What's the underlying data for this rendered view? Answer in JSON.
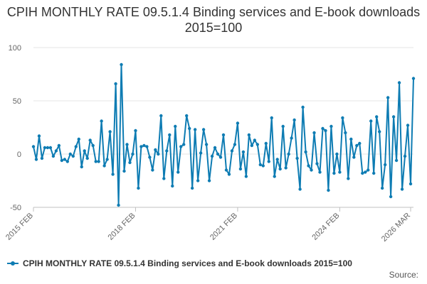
{
  "title": "CPIH MONTHLY RATE 09.5.1.4 Binding services and E-book downloads 2015=100",
  "source_label": "Source:",
  "colors": {
    "series": "#0e7cb3",
    "grid": "#e6e6e6",
    "axis": "#c0c0c0"
  },
  "chart_data": {
    "type": "line",
    "x_start": "2015 FEB",
    "x_end": "2026 MAR",
    "x_ticks": [
      "2015 FEB",
      "2018 FEB",
      "2021 FEB",
      "2024 FEB",
      "2026 MAR"
    ],
    "y_ticks": [
      100,
      50,
      0,
      -50
    ],
    "ylim": [
      -50,
      100
    ],
    "grid": true,
    "legend_position": "bottom-left",
    "series": [
      {
        "name": "CPIH MONTHLY RATE 09.5.1.4 Binding services and E-book downloads 2015=100",
        "values": [
          7,
          -5,
          17,
          -4,
          6,
          6,
          6,
          -2,
          3,
          8,
          -6,
          -5,
          -7,
          0,
          -2,
          7,
          14,
          -12,
          3,
          -4,
          13,
          8,
          -7,
          -7,
          31,
          -11,
          -5,
          21,
          -19,
          66,
          -48,
          84,
          -16,
          9,
          -8,
          0,
          22,
          -32,
          7,
          8,
          7,
          -3,
          -15,
          4,
          0,
          36,
          -23,
          3,
          18,
          -30,
          26,
          -17,
          7,
          9,
          36,
          24,
          -32,
          23,
          -25,
          1,
          23,
          9,
          -25,
          -2,
          6,
          0,
          -3,
          18,
          -15,
          -19,
          3,
          9,
          29,
          -14,
          2,
          -21,
          18,
          8,
          13,
          9,
          -10,
          -11,
          10,
          -7,
          34,
          -21,
          -5,
          -14,
          26,
          -13,
          0,
          15,
          32,
          -4,
          -33,
          44,
          2,
          -11,
          -15,
          20,
          -9,
          -17,
          24,
          22,
          -34,
          26,
          -18,
          0,
          -17,
          34,
          20,
          -23,
          14,
          -3,
          8,
          10,
          -18,
          -17,
          -15,
          31,
          -18,
          35,
          21,
          -32,
          -10,
          53,
          -40,
          35,
          -6,
          67,
          -33,
          -2,
          27,
          -28,
          71
        ]
      }
    ]
  }
}
